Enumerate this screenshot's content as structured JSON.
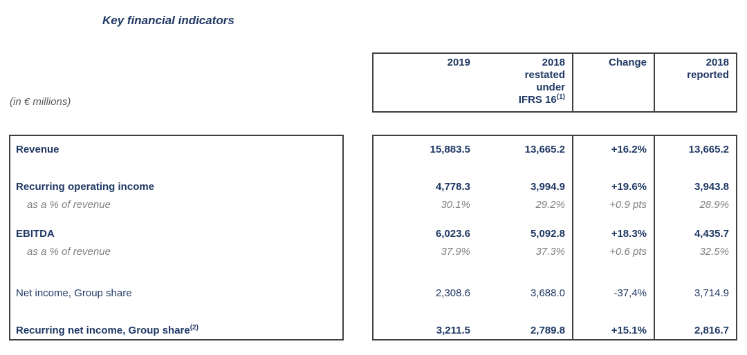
{
  "page": {
    "title": "Key financial indicators",
    "units_label": "(in € millions)"
  },
  "header": {
    "columns": [
      {
        "label": "2019"
      },
      {
        "label": "2018",
        "line2": "restated",
        "line3": "under",
        "line4": "IFRS 16",
        "sup": "(1)"
      },
      {
        "label": "Change"
      },
      {
        "label": "2018",
        "line2": "reported"
      }
    ]
  },
  "table": {
    "rows": [
      {
        "label": "Revenue",
        "values": [
          "15,883.5",
          "13,665.2",
          "+16.2%",
          "13,665.2"
        ]
      },
      {
        "label": "Recurring operating income",
        "values": [
          "4,778.3",
          "3,994.9",
          "+19.6%",
          "3,943.8"
        ]
      },
      {
        "label": "as a % of revenue",
        "values": [
          "30.1%",
          "29.2%",
          "+0.9 pts",
          "28.9%"
        ]
      },
      {
        "label": "EBITDA",
        "values": [
          "6,023.6",
          "5,092.8",
          "+18.3%",
          "4,435.7"
        ]
      },
      {
        "label": "as a % of revenue",
        "values": [
          "37.9%",
          "37.3%",
          "+0.6 pts",
          "32.5%"
        ]
      },
      {
        "label": "Net income, Group share",
        "values": [
          "2,308.6",
          "3,688.0",
          "-37,4%",
          "3,714.9"
        ]
      },
      {
        "label": "Recurring net income, Group share",
        "sup": "(2)",
        "values": [
          "3,211.5",
          "2,789.8",
          "+15.1%",
          "2,816.7"
        ]
      }
    ]
  },
  "colors": {
    "navy": "#1F3864",
    "gray_italic": "#7F7F7F",
    "units_gray": "#595959",
    "border": "#3F3F3F"
  }
}
